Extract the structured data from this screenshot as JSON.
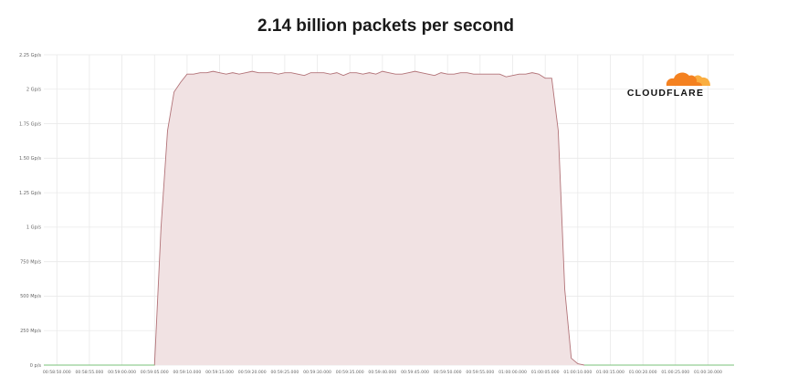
{
  "chart_data": {
    "type": "area",
    "title": "2.14 billion packets per second",
    "xlabel": "",
    "ylabel": "",
    "ylim": [
      0,
      2.25
    ],
    "y_unit": "Gp/s",
    "yticks": [
      {
        "value": 0,
        "label": "0 p/s"
      },
      {
        "value": 0.25,
        "label": "250 Mp/s"
      },
      {
        "value": 0.5,
        "label": "500 Mp/s"
      },
      {
        "value": 0.75,
        "label": "750 Mp/s"
      },
      {
        "value": 1.0,
        "label": "1 Gp/s"
      },
      {
        "value": 1.25,
        "label": "1.25 Gp/s"
      },
      {
        "value": 1.5,
        "label": "1.50 Gp/s"
      },
      {
        "value": 1.75,
        "label": "1.75 Gp/s"
      },
      {
        "value": 2.0,
        "label": "2 Gp/s"
      },
      {
        "value": 2.25,
        "label": "2.25 Gp/s"
      }
    ],
    "xlim": [
      "00:58:48.000",
      "01:00:34.000"
    ],
    "xticks": [
      "00:58:50.000",
      "00:58:55.000",
      "00:59:00.000",
      "00:59:05.000",
      "00:59:10.000",
      "00:59:15.000",
      "00:59:20.000",
      "00:59:25.000",
      "00:59:30.000",
      "00:59:35.000",
      "00:59:40.000",
      "00:59:45.000",
      "00:59:50.000",
      "00:59:55.000",
      "01:00:00.000",
      "01:00:05.000",
      "01:00:10.000",
      "01:00:15.000",
      "01:00:20.000",
      "01:00:25.000",
      "01:00:30.000"
    ],
    "grid": true,
    "legend": "none",
    "colors": {
      "fill": "#f1e2e3",
      "line": "#b27378",
      "baseline": "#7ac17a",
      "grid": "#e9e9e9"
    },
    "series": [
      {
        "x": [
          "00:58:48.000",
          "00:59:05.000",
          "00:59:05.500",
          "00:59:06.000",
          "00:59:07.000",
          "00:59:08.000",
          "00:59:09.000",
          "00:59:10.000",
          "00:59:11.000",
          "00:59:12.000",
          "00:59:13.000",
          "00:59:14.000",
          "00:59:15.000",
          "00:59:16.000",
          "00:59:17.000",
          "00:59:18.000",
          "00:59:19.000",
          "00:59:20.000",
          "00:59:21.000",
          "00:59:22.000",
          "00:59:23.000",
          "00:59:24.000",
          "00:59:25.000",
          "00:59:26.000",
          "00:59:27.000",
          "00:59:28.000",
          "00:59:29.000",
          "00:59:30.000",
          "00:59:31.000",
          "00:59:32.000",
          "00:59:33.000",
          "00:59:34.000",
          "00:59:35.000",
          "00:59:36.000",
          "00:59:37.000",
          "00:59:38.000",
          "00:59:39.000",
          "00:59:40.000",
          "00:59:41.000",
          "00:59:42.000",
          "00:59:43.000",
          "00:59:44.000",
          "00:59:45.000",
          "00:59:46.000",
          "00:59:47.000",
          "00:59:48.000",
          "00:59:49.000",
          "00:59:50.000",
          "00:59:51.000",
          "00:59:52.000",
          "00:59:53.000",
          "00:59:54.000",
          "00:59:55.000",
          "00:59:56.000",
          "00:59:57.000",
          "00:59:58.000",
          "00:59:59.000",
          "01:00:00.000",
          "01:00:01.000",
          "01:00:02.000",
          "01:00:03.000",
          "01:00:04.000",
          "01:00:05.000",
          "01:00:06.000",
          "01:00:07.000",
          "01:00:08.000",
          "01:00:09.000",
          "01:00:10.000",
          "01:00:11.000",
          "01:00:34.000"
        ],
        "y": [
          0,
          0,
          0.5,
          1.0,
          1.7,
          1.98,
          2.05,
          2.11,
          2.11,
          2.12,
          2.12,
          2.13,
          2.12,
          2.11,
          2.12,
          2.11,
          2.12,
          2.13,
          2.12,
          2.12,
          2.12,
          2.11,
          2.12,
          2.12,
          2.11,
          2.1,
          2.12,
          2.12,
          2.12,
          2.11,
          2.12,
          2.1,
          2.12,
          2.12,
          2.11,
          2.12,
          2.11,
          2.13,
          2.12,
          2.11,
          2.11,
          2.12,
          2.13,
          2.12,
          2.11,
          2.1,
          2.12,
          2.11,
          2.11,
          2.12,
          2.12,
          2.11,
          2.11,
          2.11,
          2.11,
          2.11,
          2.09,
          2.1,
          2.11,
          2.11,
          2.12,
          2.11,
          2.08,
          2.08,
          1.7,
          0.55,
          0.05,
          0.01,
          0,
          0
        ]
      }
    ]
  },
  "brand": {
    "name": "CLOUDFLARE",
    "logo_icon": "cloud-icon",
    "cloud_colors": [
      "#f48120",
      "#faae40"
    ]
  }
}
